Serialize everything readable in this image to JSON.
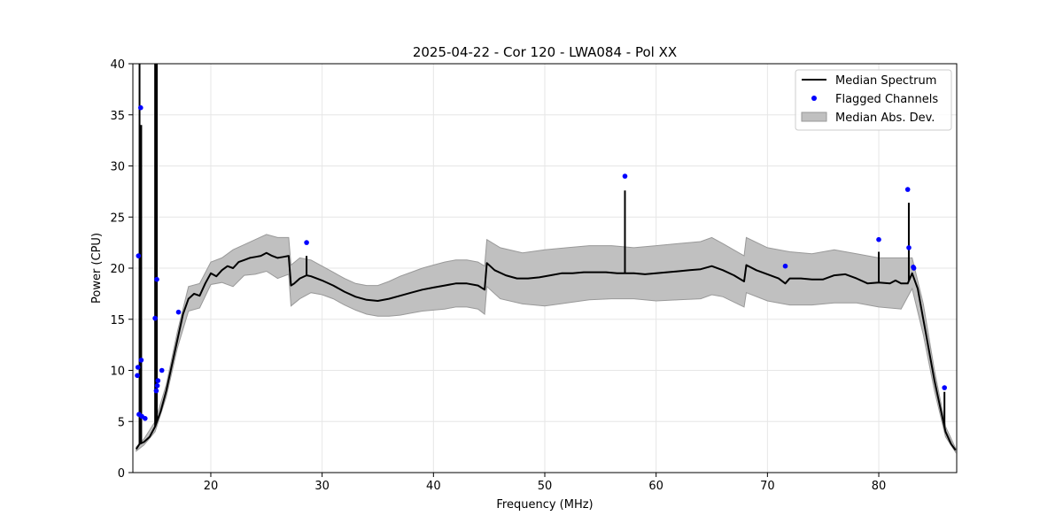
{
  "chart_data": {
    "type": "line",
    "title": "2025-04-22 - Cor 120 - LWA084 - Pol XX",
    "xlabel": "Frequency (MHz)",
    "ylabel": "Power (CPU)",
    "xlim": [
      13,
      87
    ],
    "ylim": [
      0,
      40
    ],
    "xticks": [
      20,
      30,
      40,
      50,
      60,
      70,
      80
    ],
    "yticks": [
      0,
      5,
      10,
      15,
      20,
      25,
      30,
      35,
      40
    ],
    "grid": true,
    "legend_position": "top-right",
    "colors": {
      "median_line": "#000000",
      "flagged_points": "#0000ff",
      "mad_band": "#c0c0c0",
      "mad_band_edge": "#999999"
    },
    "legend": [
      {
        "label": "Median Spectrum",
        "kind": "line"
      },
      {
        "label": "Flagged Channels",
        "kind": "marker"
      },
      {
        "label": "Median Abs. Dev.",
        "kind": "patch"
      }
    ],
    "series": [
      {
        "name": "Median Spectrum",
        "points": [
          [
            13.3,
            2.3
          ],
          [
            13.6,
            2.8
          ],
          [
            14.0,
            3.0
          ],
          [
            14.5,
            3.5
          ],
          [
            15.0,
            4.5
          ],
          [
            15.5,
            6.0
          ],
          [
            16.0,
            8.0
          ],
          [
            16.5,
            10.5
          ],
          [
            17.0,
            13.0
          ],
          [
            17.5,
            15.5
          ],
          [
            18.0,
            17.0
          ],
          [
            18.5,
            17.5
          ],
          [
            19.0,
            17.3
          ],
          [
            19.5,
            18.5
          ],
          [
            20.0,
            19.5
          ],
          [
            20.5,
            19.2
          ],
          [
            21.0,
            19.8
          ],
          [
            21.5,
            20.2
          ],
          [
            22.0,
            20.0
          ],
          [
            22.5,
            20.6
          ],
          [
            23.0,
            20.8
          ],
          [
            23.5,
            21.0
          ],
          [
            24.0,
            21.1
          ],
          [
            24.5,
            21.2
          ],
          [
            25.0,
            21.5
          ],
          [
            25.5,
            21.2
          ],
          [
            26.0,
            21.0
          ],
          [
            26.5,
            21.1
          ],
          [
            27.0,
            21.2
          ],
          [
            27.2,
            18.3
          ],
          [
            27.5,
            18.5
          ],
          [
            28.0,
            19.0
          ],
          [
            28.6,
            19.3
          ],
          [
            29.0,
            19.2
          ],
          [
            29.5,
            19.0
          ],
          [
            30.0,
            18.8
          ],
          [
            31.0,
            18.3
          ],
          [
            32.0,
            17.7
          ],
          [
            33.0,
            17.2
          ],
          [
            34.0,
            16.9
          ],
          [
            35.0,
            16.8
          ],
          [
            36.0,
            17.0
          ],
          [
            37.0,
            17.3
          ],
          [
            38.0,
            17.6
          ],
          [
            39.0,
            17.9
          ],
          [
            40.0,
            18.1
          ],
          [
            41.0,
            18.3
          ],
          [
            42.0,
            18.5
          ],
          [
            43.0,
            18.5
          ],
          [
            44.0,
            18.3
          ],
          [
            44.6,
            17.9
          ],
          [
            44.8,
            20.5
          ],
          [
            45.5,
            19.8
          ],
          [
            46.5,
            19.3
          ],
          [
            47.5,
            19.0
          ],
          [
            48.5,
            19.0
          ],
          [
            49.5,
            19.1
          ],
          [
            50.5,
            19.3
          ],
          [
            51.5,
            19.5
          ],
          [
            52.5,
            19.5
          ],
          [
            53.5,
            19.6
          ],
          [
            54.5,
            19.6
          ],
          [
            55.5,
            19.6
          ],
          [
            56.5,
            19.5
          ],
          [
            57.2,
            19.5
          ],
          [
            58.0,
            19.5
          ],
          [
            59.0,
            19.4
          ],
          [
            60.0,
            19.5
          ],
          [
            61.0,
            19.6
          ],
          [
            62.0,
            19.7
          ],
          [
            63.0,
            19.8
          ],
          [
            64.0,
            19.9
          ],
          [
            65.0,
            20.2
          ],
          [
            66.0,
            19.8
          ],
          [
            67.0,
            19.3
          ],
          [
            67.9,
            18.7
          ],
          [
            68.1,
            20.3
          ],
          [
            69.0,
            19.8
          ],
          [
            70.0,
            19.4
          ],
          [
            71.0,
            19.0
          ],
          [
            71.6,
            18.5
          ],
          [
            72.0,
            19.0
          ],
          [
            73.0,
            19.0
          ],
          [
            74.0,
            18.9
          ],
          [
            75.0,
            18.9
          ],
          [
            76.0,
            19.3
          ],
          [
            77.0,
            19.4
          ],
          [
            78.0,
            19.0
          ],
          [
            79.0,
            18.5
          ],
          [
            80.0,
            18.6
          ],
          [
            81.0,
            18.5
          ],
          [
            81.5,
            18.8
          ],
          [
            82.0,
            18.5
          ],
          [
            82.6,
            18.5
          ],
          [
            83.0,
            19.5
          ],
          [
            83.5,
            18.0
          ],
          [
            84.0,
            15.0
          ],
          [
            84.5,
            12.0
          ],
          [
            85.0,
            9.0
          ],
          [
            85.5,
            6.5
          ],
          [
            86.0,
            4.0
          ],
          [
            86.5,
            2.8
          ],
          [
            86.9,
            2.2
          ]
        ],
        "spikes": [
          {
            "x": 13.6,
            "y": 40.0
          },
          {
            "x": 13.75,
            "y": 34.0
          },
          {
            "x": 15.0,
            "y": 40.0
          },
          {
            "x": 15.15,
            "y": 40.0
          },
          {
            "x": 28.6,
            "y": 21.2
          },
          {
            "x": 57.2,
            "y": 27.6
          },
          {
            "x": 80.0,
            "y": 21.6
          },
          {
            "x": 82.7,
            "y": 26.4
          },
          {
            "x": 85.9,
            "y": 7.9
          }
        ]
      },
      {
        "name": "Flagged Channels",
        "points": [
          [
            13.4,
            9.5
          ],
          [
            13.45,
            10.3
          ],
          [
            13.5,
            21.2
          ],
          [
            13.55,
            5.7
          ],
          [
            13.7,
            35.7
          ],
          [
            13.75,
            11.0
          ],
          [
            13.8,
            5.5
          ],
          [
            14.1,
            5.3
          ],
          [
            15.0,
            15.1
          ],
          [
            15.15,
            18.9
          ],
          [
            15.2,
            8.5
          ],
          [
            15.25,
            9.0
          ],
          [
            15.1,
            8.0
          ],
          [
            15.6,
            10.0
          ],
          [
            17.1,
            15.7
          ],
          [
            28.6,
            22.5
          ],
          [
            57.2,
            29.0
          ],
          [
            71.6,
            20.2
          ],
          [
            80.0,
            22.8
          ],
          [
            82.6,
            27.7
          ],
          [
            82.7,
            22.0
          ],
          [
            83.1,
            20.1
          ],
          [
            83.15,
            20.0
          ],
          [
            85.9,
            8.3
          ]
        ]
      },
      {
        "name": "Median Abs. Dev.",
        "upper": [
          [
            13.3,
            2.5
          ],
          [
            14.0,
            3.3
          ],
          [
            15.0,
            5.0
          ],
          [
            16.0,
            8.6
          ],
          [
            17.0,
            13.8
          ],
          [
            18.0,
            18.2
          ],
          [
            19.0,
            18.5
          ],
          [
            20.0,
            20.6
          ],
          [
            21.0,
            21.0
          ],
          [
            22.0,
            21.8
          ],
          [
            23.0,
            22.3
          ],
          [
            24.0,
            22.8
          ],
          [
            25.0,
            23.3
          ],
          [
            26.0,
            23.0
          ],
          [
            27.0,
            23.0
          ],
          [
            27.2,
            20.3
          ],
          [
            28.0,
            21.0
          ],
          [
            29.0,
            20.8
          ],
          [
            30.0,
            20.2
          ],
          [
            31.0,
            19.6
          ],
          [
            32.0,
            19.0
          ],
          [
            33.0,
            18.5
          ],
          [
            34.0,
            18.3
          ],
          [
            35.0,
            18.3
          ],
          [
            36.0,
            18.7
          ],
          [
            37.0,
            19.2
          ],
          [
            38.0,
            19.6
          ],
          [
            39.0,
            20.0
          ],
          [
            40.0,
            20.3
          ],
          [
            41.0,
            20.6
          ],
          [
            42.0,
            20.8
          ],
          [
            43.0,
            20.8
          ],
          [
            44.0,
            20.6
          ],
          [
            44.6,
            20.2
          ],
          [
            44.8,
            22.8
          ],
          [
            46.0,
            22.0
          ],
          [
            48.0,
            21.5
          ],
          [
            50.0,
            21.8
          ],
          [
            52.0,
            22.0
          ],
          [
            54.0,
            22.2
          ],
          [
            56.0,
            22.2
          ],
          [
            58.0,
            22.0
          ],
          [
            60.0,
            22.2
          ],
          [
            62.0,
            22.4
          ],
          [
            64.0,
            22.6
          ],
          [
            65.0,
            23.0
          ],
          [
            66.0,
            22.4
          ],
          [
            67.9,
            21.2
          ],
          [
            68.1,
            23.0
          ],
          [
            70.0,
            22.0
          ],
          [
            72.0,
            21.6
          ],
          [
            74.0,
            21.4
          ],
          [
            76.0,
            21.8
          ],
          [
            78.0,
            21.4
          ],
          [
            80.0,
            21.0
          ],
          [
            82.0,
            21.0
          ],
          [
            83.0,
            21.0
          ],
          [
            84.0,
            16.5
          ],
          [
            85.0,
            10.0
          ],
          [
            86.0,
            4.5
          ],
          [
            86.9,
            2.4
          ]
        ],
        "lower": [
          [
            13.3,
            2.1
          ],
          [
            14.0,
            2.7
          ],
          [
            15.0,
            4.0
          ],
          [
            16.0,
            7.4
          ],
          [
            17.0,
            12.2
          ],
          [
            18.0,
            15.8
          ],
          [
            19.0,
            16.1
          ],
          [
            20.0,
            18.4
          ],
          [
            21.0,
            18.6
          ],
          [
            22.0,
            18.2
          ],
          [
            23.0,
            19.3
          ],
          [
            24.0,
            19.4
          ],
          [
            25.0,
            19.7
          ],
          [
            26.0,
            19.0
          ],
          [
            27.0,
            19.4
          ],
          [
            27.2,
            16.3
          ],
          [
            28.0,
            17.0
          ],
          [
            29.0,
            17.6
          ],
          [
            30.0,
            17.4
          ],
          [
            31.0,
            17.0
          ],
          [
            32.0,
            16.4
          ],
          [
            33.0,
            15.9
          ],
          [
            34.0,
            15.5
          ],
          [
            35.0,
            15.3
          ],
          [
            36.0,
            15.3
          ],
          [
            37.0,
            15.4
          ],
          [
            38.0,
            15.6
          ],
          [
            39.0,
            15.8
          ],
          [
            40.0,
            15.9
          ],
          [
            41.0,
            16.0
          ],
          [
            42.0,
            16.2
          ],
          [
            43.0,
            16.2
          ],
          [
            44.0,
            16.0
          ],
          [
            44.6,
            15.5
          ],
          [
            44.8,
            18.2
          ],
          [
            46.0,
            17.0
          ],
          [
            48.0,
            16.5
          ],
          [
            50.0,
            16.3
          ],
          [
            52.0,
            16.6
          ],
          [
            54.0,
            16.9
          ],
          [
            56.0,
            17.0
          ],
          [
            58.0,
            17.0
          ],
          [
            60.0,
            16.8
          ],
          [
            62.0,
            16.9
          ],
          [
            64.0,
            17.0
          ],
          [
            65.0,
            17.4
          ],
          [
            66.0,
            17.2
          ],
          [
            67.9,
            16.2
          ],
          [
            68.1,
            17.6
          ],
          [
            70.0,
            16.8
          ],
          [
            72.0,
            16.4
          ],
          [
            74.0,
            16.4
          ],
          [
            76.0,
            16.6
          ],
          [
            78.0,
            16.6
          ],
          [
            80.0,
            16.2
          ],
          [
            82.0,
            16.0
          ],
          [
            83.0,
            18.0
          ],
          [
            84.0,
            13.5
          ],
          [
            85.0,
            8.0
          ],
          [
            86.0,
            3.5
          ],
          [
            86.9,
            2.0
          ]
        ]
      }
    ]
  }
}
